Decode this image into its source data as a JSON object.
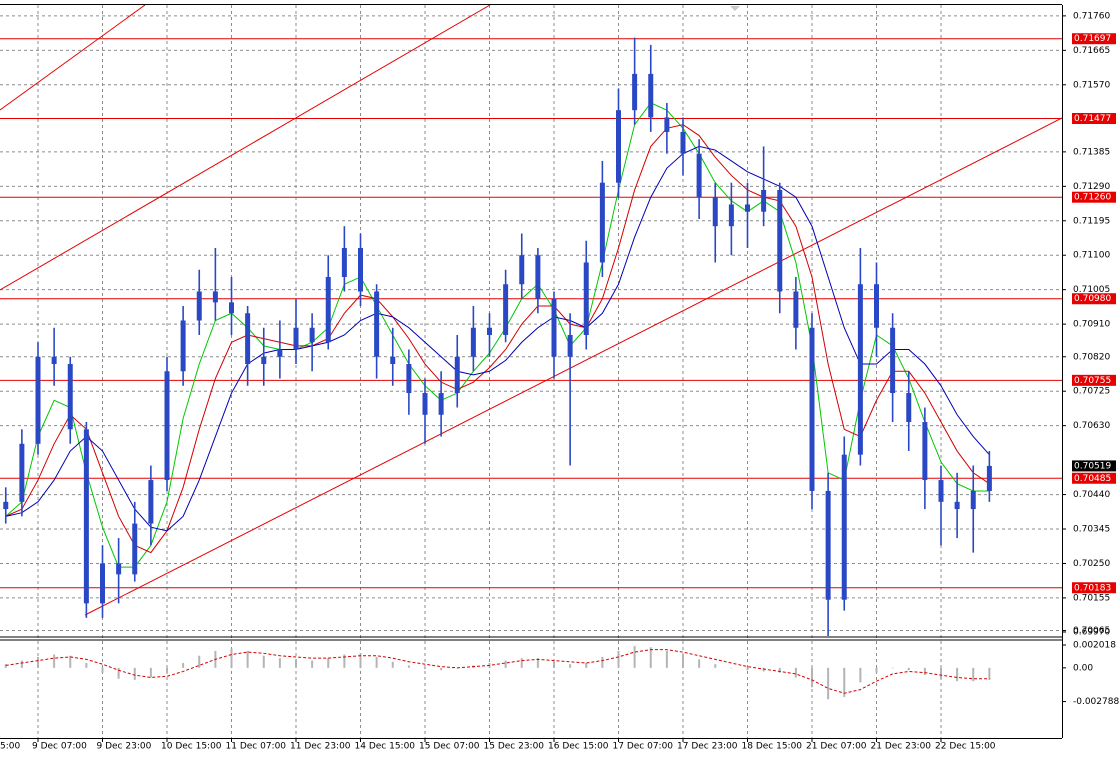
{
  "chart_data": [
    {
      "type": "candlestick",
      "categories": [
        "5:00",
        null,
        null,
        null,
        "9 Dec 07:00",
        null,
        null,
        null,
        "9 Dec 23:00",
        null,
        null,
        null,
        "10 Dec 15:00",
        null,
        null,
        null,
        "11 Dec 07:00",
        null,
        null,
        null,
        "11 Dec 23:00",
        null,
        null,
        null,
        "14 Dec 15:00",
        null,
        null,
        null,
        "15 Dec 07:00",
        null,
        null,
        null,
        "15 Dec 23:00",
        null,
        null,
        null,
        "16 Dec 15:00",
        null,
        null,
        null,
        "17 Dec 07:00",
        null,
        null,
        null,
        "17 Dec 23:00",
        null,
        null,
        null,
        "18 Dec 15:00",
        null,
        null,
        null,
        "21 Dec 07:00",
        null,
        null,
        null,
        "21 Dec 23:00",
        null,
        null,
        null,
        "22 Dec 15:00",
        null,
        null,
        null
      ],
      "open": [
        null,
        null,
        0.704,
        0.7042,
        0.7058,
        0.7082,
        0.708,
        0.7062,
        0.7014,
        0.7025,
        0.7022,
        0.7036,
        0.7048,
        0.7078,
        0.7092,
        0.71,
        0.7097,
        0.7094,
        0.708,
        0.7082,
        0.7084,
        0.709,
        0.7086,
        0.7104,
        0.7112,
        0.71,
        0.7082,
        0.708,
        0.7072,
        0.7066,
        0.7072,
        0.7082,
        0.709,
        0.7088,
        0.7102,
        0.711,
        0.7098,
        0.7082,
        0.7088,
        0.7108,
        0.713,
        0.715,
        0.716,
        0.7148,
        0.7144,
        0.7138,
        0.7126,
        0.7118,
        0.7124,
        0.7122,
        0.7128,
        0.71,
        0.709,
        0.7045,
        0.7015,
        0.7055,
        0.7102,
        0.709,
        0.7072,
        0.7064,
        0.7048,
        0.7042,
        0.704,
        0.7045
      ],
      "high": [
        null,
        null,
        0.7046,
        0.7062,
        0.7086,
        0.709,
        0.7082,
        0.7064,
        0.703,
        0.7032,
        0.7042,
        0.7052,
        0.7082,
        0.7096,
        0.7106,
        0.7112,
        0.7104,
        0.7096,
        0.709,
        0.7092,
        0.7098,
        0.7094,
        0.711,
        0.7118,
        0.7116,
        0.7102,
        0.709,
        0.7084,
        0.7076,
        0.7078,
        0.7088,
        0.7096,
        0.7094,
        0.7106,
        0.7116,
        0.7112,
        0.71,
        0.7094,
        0.7114,
        0.7136,
        0.7156,
        0.717,
        0.7168,
        0.7152,
        0.7148,
        0.7142,
        0.713,
        0.713,
        0.713,
        0.714,
        0.713,
        0.7104,
        0.7094,
        0.705,
        0.706,
        0.7112,
        0.7108,
        0.7094,
        0.7078,
        0.7068,
        0.7052,
        0.705,
        0.7052,
        0.7056
      ],
      "low": [
        null,
        null,
        0.7036,
        0.7038,
        0.7055,
        0.7074,
        0.7058,
        0.701,
        0.701,
        0.7014,
        0.702,
        0.703,
        0.7045,
        0.7074,
        0.7088,
        0.7092,
        0.7088,
        0.7074,
        0.7074,
        0.7076,
        0.708,
        0.7078,
        0.7084,
        0.71,
        0.7096,
        0.7076,
        0.7074,
        0.7066,
        0.7058,
        0.706,
        0.7068,
        0.7078,
        0.7082,
        0.7086,
        0.7098,
        0.7094,
        0.7076,
        0.7052,
        0.7084,
        0.7104,
        0.7126,
        0.7146,
        0.7144,
        0.7138,
        0.7132,
        0.712,
        0.7108,
        0.711,
        0.7112,
        0.7118,
        0.7094,
        0.7084,
        0.704,
        0.70035,
        0.7012,
        0.7052,
        0.7082,
        0.7064,
        0.7056,
        0.704,
        0.703,
        0.7032,
        0.7028,
        0.7042
      ],
      "close": [
        null,
        null,
        0.7042,
        0.7058,
        0.7082,
        0.708,
        0.7062,
        0.7014,
        0.7025,
        0.7022,
        0.7036,
        0.7048,
        0.7078,
        0.7092,
        0.71,
        0.7097,
        0.7094,
        0.708,
        0.7082,
        0.7084,
        0.709,
        0.7086,
        0.7104,
        0.7112,
        0.71,
        0.7082,
        0.708,
        0.7072,
        0.7066,
        0.7072,
        0.7082,
        0.709,
        0.7088,
        0.7102,
        0.711,
        0.7098,
        0.7082,
        0.7088,
        0.7108,
        0.713,
        0.715,
        0.716,
        0.7148,
        0.7144,
        0.7138,
        0.7126,
        0.7118,
        0.7124,
        0.7122,
        0.7128,
        0.71,
        0.709,
        0.7045,
        0.7015,
        0.7055,
        0.7102,
        0.709,
        0.7072,
        0.7064,
        0.7048,
        0.7042,
        0.704,
        0.7045,
        0.70519
      ],
      "color": "#2a48c4",
      "series": [
        {
          "color": "#00c800",
          "values": [
            null,
            null,
            0.7038,
            0.7042,
            0.706,
            0.707,
            0.7068,
            0.705,
            0.7035,
            0.7024,
            0.7024,
            0.703,
            0.7042,
            0.7065,
            0.708,
            0.7092,
            0.7094,
            0.709,
            0.7085,
            0.7084,
            0.7084,
            0.7086,
            0.709,
            0.7102,
            0.7104,
            0.7096,
            0.7088,
            0.708,
            0.7074,
            0.707,
            0.7072,
            0.7078,
            0.7083,
            0.709,
            0.7098,
            0.7102,
            0.7095,
            0.7085,
            0.709,
            0.7108,
            0.7128,
            0.7146,
            0.7152,
            0.715,
            0.7145,
            0.7138,
            0.713,
            0.7125,
            0.7122,
            0.7125,
            0.7122,
            0.7108,
            0.7085,
            0.705,
            0.7048,
            0.707,
            0.7088,
            0.7085,
            0.7076,
            0.7064,
            0.7053,
            0.7047,
            0.7045,
            0.7045
          ]
        },
        {
          "color": "#d20000",
          "values": [
            null,
            null,
            0.7038,
            0.704,
            0.7048,
            0.7058,
            0.7066,
            0.7062,
            0.705,
            0.7038,
            0.703,
            0.7028,
            0.7034,
            0.7046,
            0.7062,
            0.7076,
            0.7086,
            0.7088,
            0.7087,
            0.7086,
            0.7085,
            0.7085,
            0.7087,
            0.7094,
            0.7099,
            0.7098,
            0.7093,
            0.7087,
            0.708,
            0.7075,
            0.7073,
            0.7075,
            0.7079,
            0.7084,
            0.7091,
            0.7096,
            0.7096,
            0.7091,
            0.709,
            0.7098,
            0.7112,
            0.7128,
            0.714,
            0.7145,
            0.7146,
            0.7143,
            0.7137,
            0.7132,
            0.7128,
            0.7126,
            0.7125,
            0.7118,
            0.7104,
            0.708,
            0.7062,
            0.706,
            0.707,
            0.7078,
            0.7078,
            0.7072,
            0.7064,
            0.7056,
            0.705,
            0.7047
          ]
        },
        {
          "color": "#0000b4",
          "values": [
            null,
            null,
            0.7038,
            0.7039,
            0.7042,
            0.7048,
            0.7056,
            0.706,
            0.7056,
            0.7048,
            0.704,
            0.7035,
            0.7034,
            0.7038,
            0.7048,
            0.706,
            0.7072,
            0.708,
            0.7083,
            0.7084,
            0.7084,
            0.7085,
            0.7086,
            0.7088,
            0.7092,
            0.7094,
            0.7093,
            0.709,
            0.7086,
            0.7082,
            0.7078,
            0.7077,
            0.7078,
            0.7081,
            0.7086,
            0.709,
            0.7093,
            0.7092,
            0.709,
            0.7094,
            0.7102,
            0.7115,
            0.7126,
            0.7134,
            0.7138,
            0.714,
            0.7139,
            0.7136,
            0.7133,
            0.7131,
            0.7129,
            0.7126,
            0.7118,
            0.7104,
            0.709,
            0.708,
            0.708,
            0.7084,
            0.7084,
            0.708,
            0.7074,
            0.7066,
            0.706,
            0.7055
          ]
        }
      ],
      "ylim": [
        0.7005,
        0.7179
      ],
      "yticks": [
        {
          "value": 0.7176,
          "label": "0.71760"
        },
        0.71665,
        {
          "value": 0.7157,
          "label": "0.71570"
        },
        0.71385,
        {
          "value": 0.7129,
          "label": "0.71290"
        },
        0.71195,
        {
          "value": 0.711,
          "label": "0.71100"
        },
        0.71005,
        {
          "value": 0.7091,
          "label": "0.70910"
        },
        {
          "value": 0.7082,
          "label": "0.70820"
        },
        0.70725,
        {
          "value": 0.7063,
          "label": "0.70630"
        },
        {
          "value": 0.7044,
          "label": "0.70440"
        },
        0.70345,
        {
          "value": 0.7025,
          "label": "0.70250"
        },
        0.70155,
        0.70065,
        {
          "value": 0.6997,
          "label": "0.69970"
        }
      ],
      "levels": [
        {
          "value": 0.71697,
          "label": "0.71697"
        },
        {
          "value": 0.71477,
          "label": "0.71477"
        },
        {
          "value": 0.7126,
          "label": "0.71260"
        },
        {
          "value": 0.7098,
          "label": "0.70980"
        },
        {
          "value": 0.70755,
          "label": "0.70755"
        },
        {
          "value": 0.70485,
          "label": "0.70485"
        },
        {
          "value": 0.70183,
          "label": "0.70183"
        }
      ],
      "level_color": "#e60000",
      "current_price": {
        "value": 0.70519,
        "label": "0.70519"
      },
      "grid": true
    },
    {
      "type": "bar",
      "values": [
        null,
        null,
        0.0003,
        0.0006,
        0.0009,
        0.0011,
        0.001,
        0.0004,
        -0.0004,
        -0.0009,
        -0.001,
        -0.0008,
        -0.0004,
        0.0004,
        0.001,
        0.0014,
        0.0016,
        0.0014,
        0.001,
        0.0008,
        0.0007,
        0.0006,
        0.0008,
        0.0011,
        0.0012,
        0.0009,
        0.0005,
        0.0002,
        -0.0001,
        -0.0002,
        0.0,
        0.0002,
        0.0004,
        0.0006,
        0.0008,
        0.0008,
        0.0005,
        0.0003,
        0.0004,
        0.0009,
        0.0014,
        0.0018,
        0.0017,
        0.0014,
        0.0011,
        0.0007,
        0.0003,
        0.0,
        -0.0002,
        -0.0003,
        -0.0004,
        -0.0008,
        -0.0016,
        -0.0026,
        -0.0024,
        -0.0012,
        -0.0004,
        0.0,
        -0.0002,
        -0.0006,
        -0.0009,
        -0.0011,
        -0.0011,
        -0.001
      ],
      "color": "#b4b4b4",
      "series": [
        {
          "color": "#d20000",
          "values": [
            null,
            null,
            0.0002,
            0.0004,
            0.0006,
            0.0008,
            0.0009,
            0.0007,
            0.0003,
            -0.0002,
            -0.0006,
            -0.0008,
            -0.0007,
            -0.0003,
            0.0002,
            0.0007,
            0.0011,
            0.0013,
            0.0012,
            0.001,
            0.0009,
            0.0008,
            0.0008,
            0.0009,
            0.001,
            0.001,
            0.0008,
            0.0005,
            0.0003,
            0.0001,
            0.0,
            0.0001,
            0.0002,
            0.0004,
            0.0006,
            0.0007,
            0.0006,
            0.0005,
            0.0004,
            0.0006,
            0.0009,
            0.0013,
            0.0015,
            0.0015,
            0.0013,
            0.001,
            0.0007,
            0.0004,
            0.0001,
            -0.0001,
            -0.0003,
            -0.0005,
            -0.001,
            -0.0017,
            -0.0021,
            -0.0018,
            -0.0011,
            -0.0005,
            -0.0003,
            -0.0004,
            -0.0006,
            -0.0008,
            -0.0009,
            -0.0009
          ]
        }
      ],
      "ylim": [
        -0.0058,
        0.0023
      ],
      "yticks": [
        0.002018,
        {
          "value": 0,
          "label": "0.00"
        },
        -0.002788
      ]
    }
  ]
}
